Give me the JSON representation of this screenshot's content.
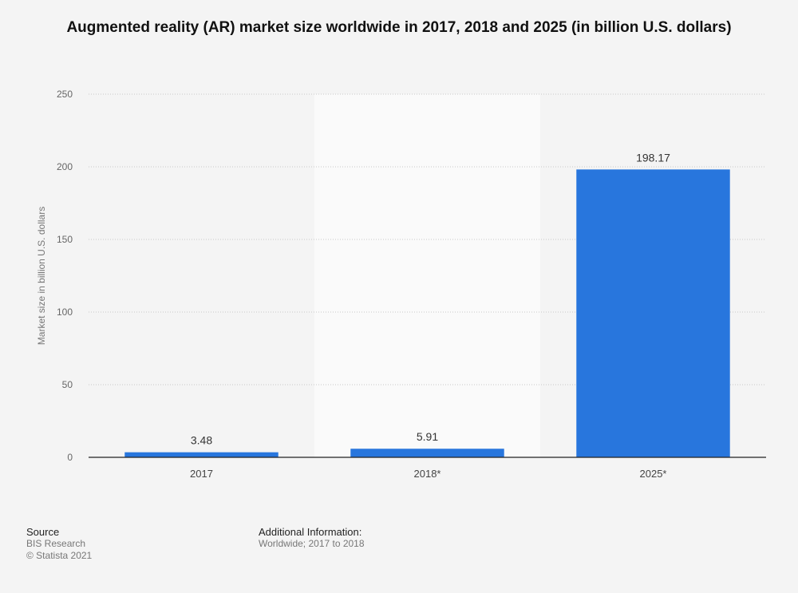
{
  "chart_data": {
    "type": "bar",
    "title": "Augmented reality (AR) market size worldwide in 2017, 2018 and 2025 (in billion U.S. dollars)",
    "categories": [
      "2017",
      "2018*",
      "2025*"
    ],
    "values": [
      3.48,
      5.91,
      198.17
    ],
    "value_labels": [
      "3.48",
      "5.91",
      "198.17"
    ],
    "xlabel": "",
    "ylabel": "Market size in billion U.S. dollars",
    "ylim": [
      0,
      250
    ],
    "yticks": [
      0,
      50,
      100,
      150,
      200,
      250
    ],
    "grid": true,
    "highlighted_category": "2018*",
    "colors": {
      "bar": "#2876dd",
      "background": "#f4f4f4",
      "highlight_band": "#fafafa",
      "grid": "#c8c8c8"
    }
  },
  "footer": {
    "source_heading": "Source",
    "source_lines": [
      "BIS Research",
      "© Statista 2021"
    ],
    "info_heading": "Additional Information:",
    "info_text": "Worldwide; 2017 to 2018"
  }
}
